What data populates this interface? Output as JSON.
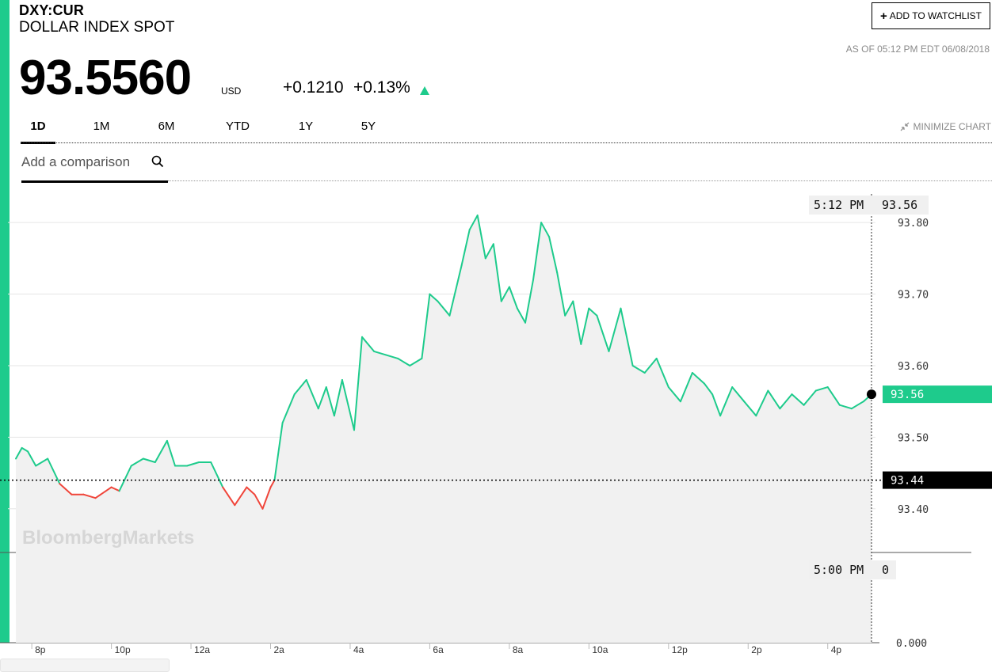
{
  "header": {
    "ticker": "DXY:CUR",
    "name": "DOLLAR INDEX SPOT",
    "watchlist_label": "ADD TO WATCHLIST",
    "as_of": "AS OF 05:12 PM EDT 06/08/2018"
  },
  "quote": {
    "price": "93.5560",
    "currency": "USD",
    "change": "+0.1210",
    "change_pct": "+0.13%",
    "direction": "up"
  },
  "tabs": [
    {
      "label": "1D",
      "active": true
    },
    {
      "label": "1M",
      "active": false
    },
    {
      "label": "6M",
      "active": false
    },
    {
      "label": "YTD",
      "active": false
    },
    {
      "label": "1Y",
      "active": false
    },
    {
      "label": "5Y",
      "active": false
    }
  ],
  "minimize_label": "MINIMIZE CHART",
  "compare": {
    "placeholder": "Add a comparison"
  },
  "colors": {
    "accent": "#1ecb8c",
    "down": "#f0453a",
    "fill": "#f1f1f1"
  },
  "icons": [
    "plus-icon",
    "minimize-arrows-icon",
    "search-icon",
    "arrow-up-icon"
  ],
  "chart_data": {
    "type": "line",
    "watermark": "BloombergMarkets",
    "previous_close": 93.44,
    "previous_close_label": "93.44",
    "last_value": 93.56,
    "last_value_label": "93.56",
    "crosshair_time": "5:12 PM",
    "crosshair_value": "93.56",
    "volume_time": "5:00 PM",
    "volume_value": "0",
    "ylim": [
      93.34,
      93.84
    ],
    "y_ticks": [
      "93.80",
      "93.70",
      "93.60",
      "93.50",
      "93.40"
    ],
    "volume_axis_label": "0.000",
    "x_ticks": [
      "8p",
      "10p",
      "12a",
      "2a",
      "4a",
      "6a",
      "8a",
      "10a",
      "12p",
      "2p",
      "4p"
    ],
    "x_tick_hours": [
      20,
      22,
      24,
      26,
      28,
      30,
      32,
      34,
      36,
      38,
      40
    ],
    "xlim_hours": [
      19.4,
      41.2
    ],
    "series": [
      {
        "x": [
          19.6,
          19.75,
          19.9,
          20.1,
          20.4,
          20.7,
          21.0,
          21.3,
          21.6,
          22.0,
          22.2,
          22.5,
          22.8,
          23.1,
          23.4,
          23.6,
          23.9,
          24.2,
          24.5,
          24.8,
          25.1,
          25.4,
          25.6,
          25.8,
          26.0,
          26.1,
          26.3,
          26.6,
          26.9,
          27.2,
          27.4,
          27.6,
          27.8,
          28.1,
          28.3,
          28.6,
          28.9,
          29.2,
          29.5,
          29.8,
          30.0,
          30.2,
          30.5,
          30.8,
          31.0,
          31.2,
          31.4,
          31.6,
          31.8,
          32.0,
          32.2,
          32.4,
          32.6,
          32.8,
          33.0,
          33.2,
          33.4,
          33.6,
          33.8,
          34.0,
          34.2,
          34.5,
          34.8,
          35.1,
          35.4,
          35.7,
          36.0,
          36.3,
          36.6,
          36.9,
          37.1,
          37.3,
          37.6,
          37.9,
          38.2,
          38.5,
          38.8,
          39.1,
          39.4,
          39.7,
          40.0,
          40.3,
          40.6,
          40.9,
          41.1
        ],
        "y": [
          93.47,
          93.485,
          93.48,
          93.46,
          93.47,
          93.435,
          93.42,
          93.42,
          93.415,
          93.43,
          93.425,
          93.46,
          93.47,
          93.465,
          93.495,
          93.46,
          93.46,
          93.465,
          93.465,
          93.43,
          93.405,
          93.43,
          93.42,
          93.4,
          93.43,
          93.44,
          93.52,
          93.56,
          93.58,
          93.54,
          93.57,
          93.53,
          93.58,
          93.51,
          93.64,
          93.62,
          93.615,
          93.61,
          93.6,
          93.61,
          93.7,
          93.69,
          93.67,
          93.74,
          93.79,
          93.81,
          93.75,
          93.77,
          93.69,
          93.71,
          93.68,
          93.66,
          93.72,
          93.8,
          93.78,
          93.73,
          93.67,
          93.69,
          93.63,
          93.68,
          93.67,
          93.62,
          93.68,
          93.6,
          93.59,
          93.61,
          93.57,
          93.55,
          93.59,
          93.575,
          93.56,
          93.53,
          93.57,
          93.55,
          93.53,
          93.565,
          93.54,
          93.56,
          93.545,
          93.565,
          93.57,
          93.545,
          93.54,
          93.55,
          93.56
        ]
      }
    ]
  }
}
